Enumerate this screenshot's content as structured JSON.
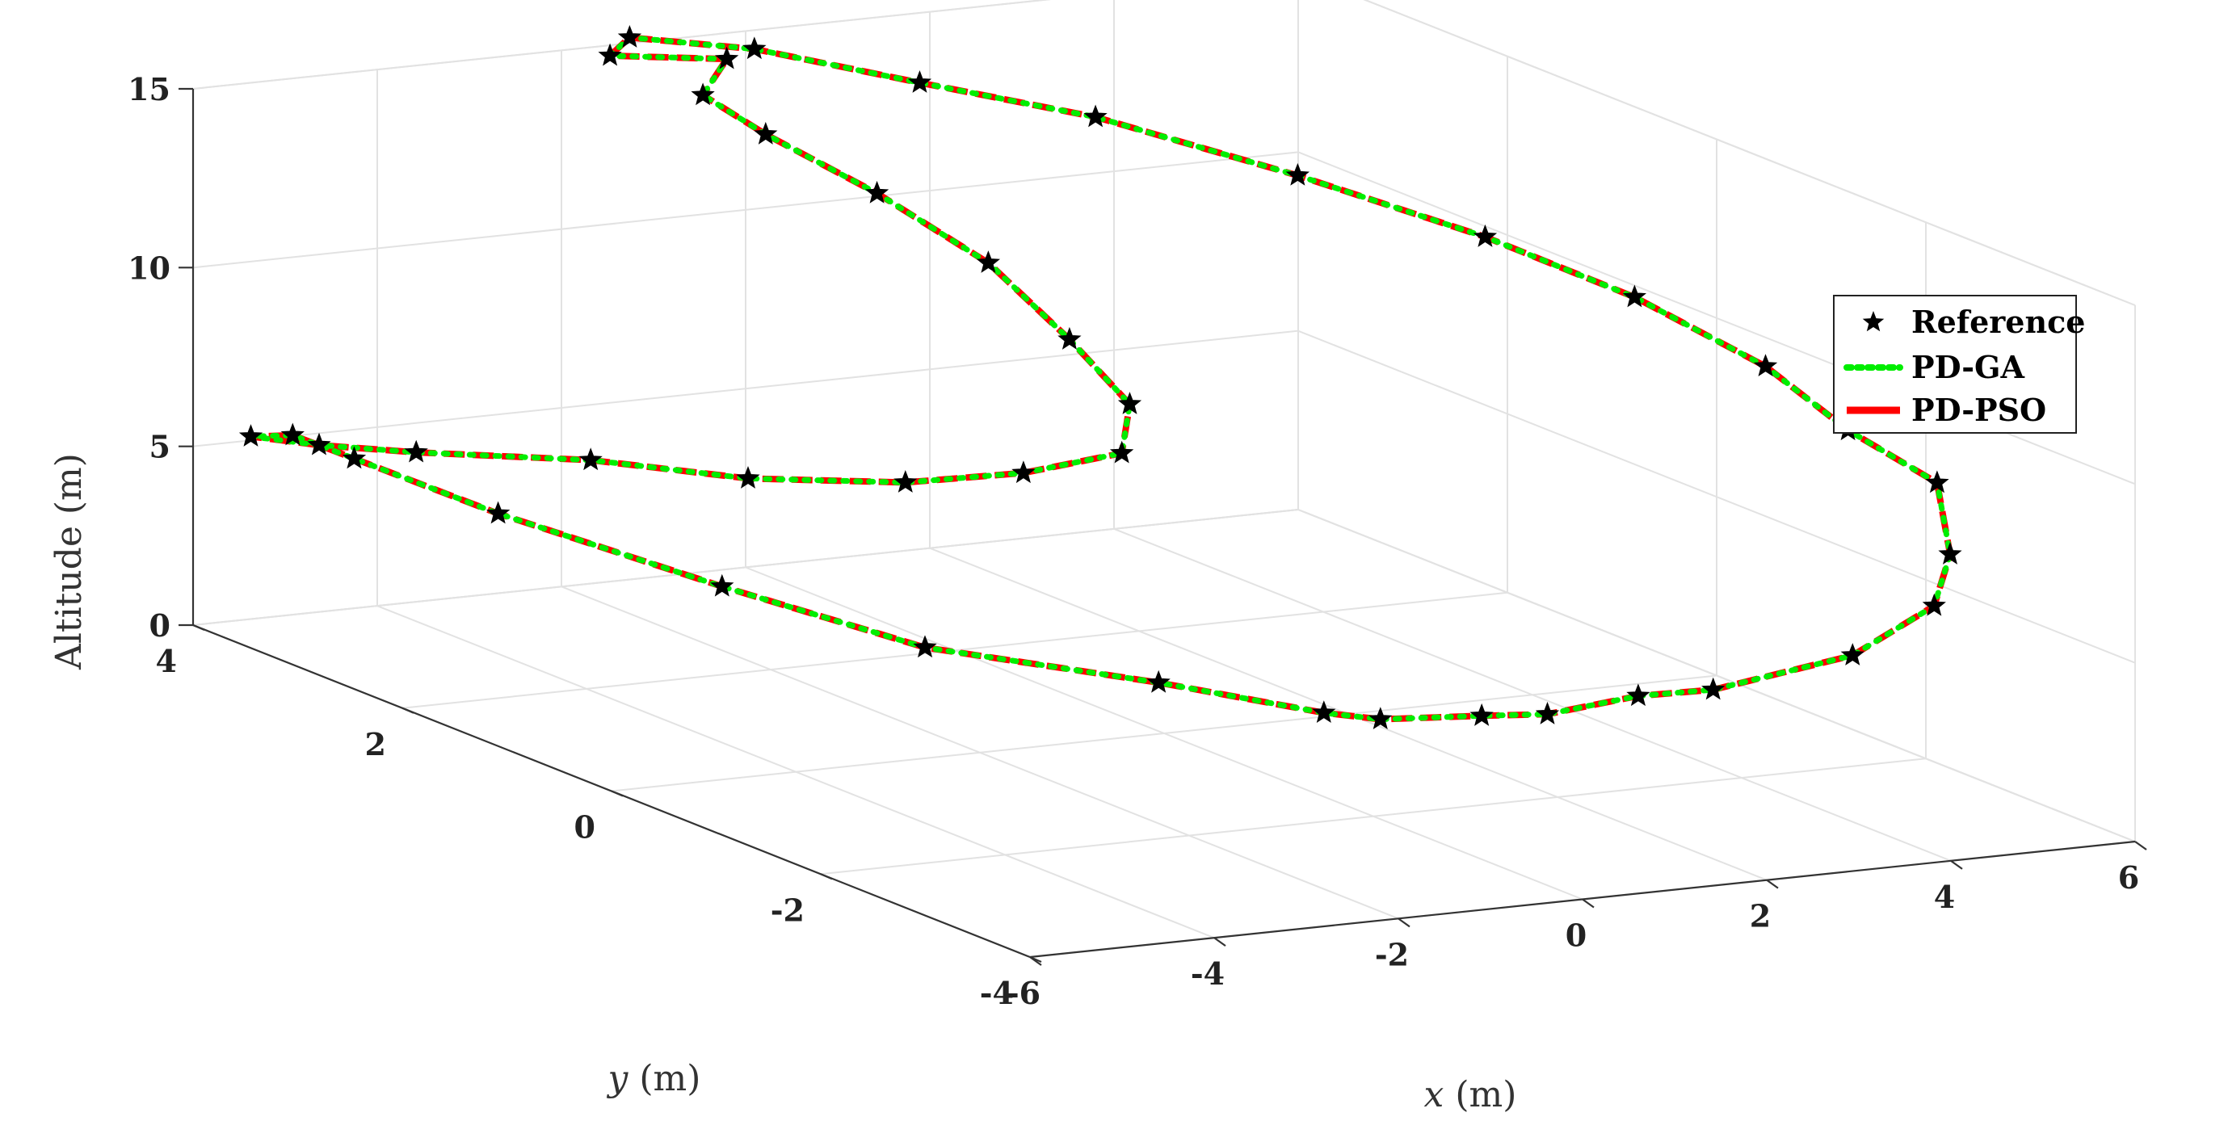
{
  "chart_data": {
    "type": "line",
    "view": "3d",
    "xlabel_var": "x",
    "xlabel_unit": "(m)",
    "ylabel_var": "y",
    "ylabel_unit": "(m)",
    "zlabel": "Altitude (m)",
    "xlim": [
      -6,
      6
    ],
    "ylim": [
      -4,
      4
    ],
    "zlim": [
      0,
      15
    ],
    "xticks": [
      "-6",
      "-4",
      "-2",
      "0",
      "2",
      "4",
      "6"
    ],
    "yticks": [
      "-4",
      "-2",
      "0",
      "2",
      "4"
    ],
    "zticks": [
      "0",
      "5",
      "10",
      "15"
    ],
    "grid": true,
    "legend_position": "right",
    "series": [
      {
        "name": "Reference",
        "style": "markers",
        "marker": "star",
        "color": "#000000",
        "points": [
          [
            -1.0,
            3.3,
            15.3
          ],
          [
            -1.7,
            3.8,
            15.0
          ],
          [
            -1.6,
            3.7,
            15.6
          ],
          [
            -0.7,
            3.3,
            15.5
          ],
          [
            0.3,
            2.6,
            15.1
          ],
          [
            1.3,
            1.8,
            14.8
          ],
          [
            2.7,
            1.1,
            13.6
          ],
          [
            3.6,
            0.1,
            12.8
          ],
          [
            4.2,
            -0.8,
            12.0
          ],
          [
            4.6,
            -1.7,
            11.0
          ],
          [
            4.7,
            -2.4,
            10.0
          ],
          [
            5.1,
            -2.9,
            9.0
          ],
          [
            4.9,
            -3.2,
            7.4
          ],
          [
            4.5,
            -3.4,
            6.3
          ],
          [
            3.5,
            -3.5,
            5.3
          ],
          [
            2.1,
            -3.4,
            4.6
          ],
          [
            1.4,
            -3.3,
            4.5
          ],
          [
            0.3,
            -3.4,
            4.4
          ],
          [
            -0.3,
            -3.3,
            4.4
          ],
          [
            -1.4,
            -3.3,
            4.6
          ],
          [
            -1.9,
            -3.2,
            4.8
          ],
          [
            -2.9,
            -2.5,
            5.1
          ],
          [
            -4.3,
            -1.5,
            5.3
          ],
          [
            -4.8,
            0.0,
            5.4
          ],
          [
            -5.3,
            1.7,
            5.6
          ],
          [
            -5.5,
            2.9,
            5.8
          ],
          [
            -5.6,
            3.4,
            5.9
          ],
          [
            -5.6,
            3.8,
            5.4
          ],
          [
            -5.2,
            3.5,
            5.4
          ],
          [
            -4.6,
            3.1,
            5.5
          ],
          [
            -3.5,
            2.4,
            5.8
          ],
          [
            -2.7,
            1.6,
            6.0
          ],
          [
            -1.9,
            0.8,
            6.6
          ],
          [
            -1.3,
            0.2,
            7.4
          ],
          [
            -0.8,
            -0.3,
            8.4
          ],
          [
            -0.6,
            -0.2,
            9.6
          ],
          [
            -0.8,
            0.2,
            11.0
          ],
          [
            -1.0,
            0.8,
            12.5
          ],
          [
            -1.3,
            1.6,
            13.6
          ],
          [
            -1.6,
            2.4,
            14.4
          ],
          [
            -1.6,
            3.0,
            14.8
          ]
        ]
      },
      {
        "name": "PD-GA",
        "style": "dotted",
        "color": "#00ee00"
      },
      {
        "name": "PD-PSO",
        "style": "dashed",
        "color": "#ff0000"
      }
    ]
  }
}
